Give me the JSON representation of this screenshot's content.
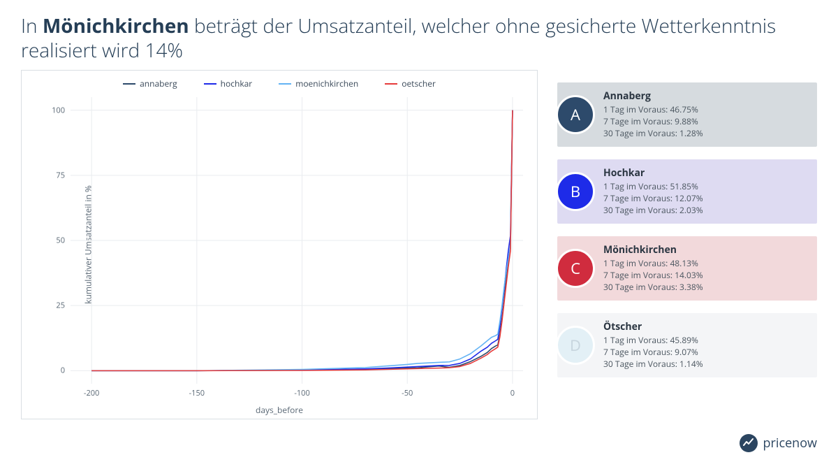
{
  "title_prefix": "In ",
  "title_bold": "Mönichkirchen",
  "title_suffix": " beträgt der Umsatzanteil, welcher ohne gesicherte Wetterkenntnis realisiert wird 14%",
  "chart": {
    "type": "line",
    "x_label": "days_before",
    "y_label": "kumulativer Umsatzanteil in %",
    "xlim": [
      -210,
      5
    ],
    "ylim": [
      -5,
      105
    ],
    "x_ticks": [
      -200,
      -150,
      -100,
      -50,
      0
    ],
    "y_ticks": [
      0,
      25,
      50,
      75,
      100
    ],
    "grid_color": "#e9ecef",
    "axis_color": "#b8bec4",
    "tick_font_size": 11,
    "tick_color": "#5a6875",
    "line_width": 1.6,
    "series": [
      {
        "name": "annaberg",
        "color": "#2d4a6b",
        "points": [
          [
            -200,
            0
          ],
          [
            -150,
            0
          ],
          [
            -100,
            0.2
          ],
          [
            -70,
            0.5
          ],
          [
            -60,
            0.7
          ],
          [
            -50,
            1.0
          ],
          [
            -45,
            1.1
          ],
          [
            -40,
            1.5
          ],
          [
            -35,
            1.8
          ],
          [
            -30,
            1.28
          ],
          [
            -25,
            2.0
          ],
          [
            -20,
            3.5
          ],
          [
            -15,
            5.5
          ],
          [
            -12,
            7.0
          ],
          [
            -10,
            8.5
          ],
          [
            -8,
            9.5
          ],
          [
            -7,
            9.88
          ],
          [
            -6,
            14
          ],
          [
            -5,
            20
          ],
          [
            -4,
            27
          ],
          [
            -3,
            35
          ],
          [
            -2,
            41
          ],
          [
            -1,
            46.75
          ],
          [
            0,
            100
          ]
        ]
      },
      {
        "name": "hochkar",
        "color": "#1e2be8",
        "points": [
          [
            -200,
            0
          ],
          [
            -150,
            0
          ],
          [
            -100,
            0.3
          ],
          [
            -70,
            0.7
          ],
          [
            -60,
            1.0
          ],
          [
            -50,
            1.4
          ],
          [
            -45,
            1.6
          ],
          [
            -40,
            1.8
          ],
          [
            -35,
            2.0
          ],
          [
            -30,
            2.03
          ],
          [
            -25,
            2.8
          ],
          [
            -20,
            4.5
          ],
          [
            -15,
            7.5
          ],
          [
            -12,
            9.0
          ],
          [
            -10,
            10.5
          ],
          [
            -8,
            11.5
          ],
          [
            -7,
            12.07
          ],
          [
            -6,
            17
          ],
          [
            -5,
            24
          ],
          [
            -4,
            31
          ],
          [
            -3,
            39
          ],
          [
            -2,
            46
          ],
          [
            -1,
            51.85
          ],
          [
            0,
            100
          ]
        ]
      },
      {
        "name": "moenichkirchen",
        "color": "#63b3f4",
        "points": [
          [
            -200,
            0
          ],
          [
            -150,
            0
          ],
          [
            -100,
            0.5
          ],
          [
            -70,
            1.2
          ],
          [
            -60,
            1.8
          ],
          [
            -50,
            2.4
          ],
          [
            -45,
            2.8
          ],
          [
            -40,
            3.0
          ],
          [
            -35,
            3.2
          ],
          [
            -30,
            3.38
          ],
          [
            -25,
            4.5
          ],
          [
            -20,
            6.5
          ],
          [
            -15,
            9.5
          ],
          [
            -12,
            11.5
          ],
          [
            -10,
            12.8
          ],
          [
            -8,
            13.5
          ],
          [
            -7,
            14.03
          ],
          [
            -6,
            19
          ],
          [
            -5,
            25
          ],
          [
            -4,
            32
          ],
          [
            -3,
            38
          ],
          [
            -2,
            43
          ],
          [
            -1,
            48.13
          ],
          [
            0,
            100
          ]
        ]
      },
      {
        "name": "oetscher",
        "color": "#e63b3b",
        "points": [
          [
            -200,
            0
          ],
          [
            -150,
            0
          ],
          [
            -100,
            0.1
          ],
          [
            -70,
            0.3
          ],
          [
            -60,
            0.5
          ],
          [
            -50,
            0.7
          ],
          [
            -45,
            0.8
          ],
          [
            -40,
            0.9
          ],
          [
            -35,
            1.0
          ],
          [
            -30,
            1.14
          ],
          [
            -25,
            1.6
          ],
          [
            -20,
            2.8
          ],
          [
            -15,
            4.8
          ],
          [
            -12,
            6.2
          ],
          [
            -10,
            7.5
          ],
          [
            -8,
            8.5
          ],
          [
            -7,
            9.07
          ],
          [
            -6,
            13
          ],
          [
            -5,
            19
          ],
          [
            -4,
            26
          ],
          [
            -3,
            33
          ],
          [
            -2,
            40
          ],
          [
            -1,
            45.89
          ],
          [
            0,
            100
          ]
        ]
      }
    ]
  },
  "cards": [
    {
      "letter": "A",
      "title": "Annaberg",
      "lines": [
        "1 Tag im Voraus: 46.75%",
        "7 Tage im Voraus: 9.88%",
        "30 Tage im Voraus: 1.28%"
      ],
      "bg": "#d6dbdf",
      "circle": "#2d4a6b",
      "letter_color": "#ffffff"
    },
    {
      "letter": "B",
      "title": "Hochkar",
      "lines": [
        "1 Tag im Voraus: 51.85%",
        "7 Tage im Voraus: 12.07%",
        "30 Tage im Voraus: 2.03%"
      ],
      "bg": "#dedbf2",
      "circle": "#1e2be8",
      "letter_color": "#ffffff"
    },
    {
      "letter": "C",
      "title": "Mönichkirchen",
      "lines": [
        "1 Tag im Voraus: 48.13%",
        "7 Tage im Voraus: 14.03%",
        "30 Tage im Voraus: 3.38%"
      ],
      "bg": "#f2d9db",
      "circle": "#d02c3e",
      "letter_color": "#ffffff"
    },
    {
      "letter": "D",
      "title": "Ötscher",
      "lines": [
        "1 Tag im Voraus: 45.89%",
        "7 Tage im Voraus: 9.07%",
        "30 Tage im Voraus: 1.14%"
      ],
      "bg": "#f4f5f7",
      "circle": "#e3f0f6",
      "letter_color": "#c7d5de"
    }
  ],
  "logo_text": "pricenow"
}
